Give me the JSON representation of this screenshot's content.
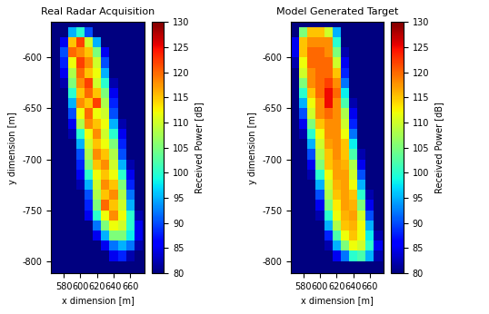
{
  "chart_data": [
    {
      "type": "heatmap",
      "title": "Real Radar Acquisition",
      "x_label": "x dimension [m]",
      "y_label": "y dimension [m]",
      "xlim": [
        565,
        677
      ],
      "ylim": [
        -812,
        -565
      ],
      "xticks": [
        580,
        600,
        620,
        640,
        660
      ],
      "yticks": [
        -800,
        -750,
        -700,
        -650,
        -600
      ],
      "x_edges": [
        565,
        575,
        585,
        595,
        605,
        615,
        625,
        635,
        645,
        655,
        665,
        675
      ],
      "y_edges": [
        -810,
        -800,
        -790,
        -780,
        -770,
        -760,
        -750,
        -740,
        -730,
        -720,
        -710,
        -700,
        -690,
        -680,
        -670,
        -660,
        -650,
        -640,
        -630,
        -620,
        -610,
        -600,
        -590,
        -580,
        -570,
        -560
      ],
      "cells": [
        [
          80,
          80,
          80,
          80,
          80,
          80,
          80,
          80,
          80,
          80,
          80
        ],
        [
          80,
          80,
          80,
          80,
          80,
          80,
          80,
          85,
          88,
          82,
          80
        ],
        [
          80,
          80,
          80,
          80,
          80,
          80,
          85,
          92,
          95,
          92,
          82
        ],
        [
          80,
          80,
          80,
          80,
          80,
          85,
          95,
          105,
          105,
          98,
          85
        ],
        [
          80,
          80,
          80,
          80,
          80,
          92,
          105,
          112,
          110,
          100,
          85
        ],
        [
          80,
          80,
          80,
          80,
          85,
          100,
          112,
          118,
          112,
          100,
          82
        ],
        [
          80,
          80,
          80,
          80,
          88,
          105,
          120,
          115,
          110,
          95,
          80
        ],
        [
          80,
          80,
          80,
          80,
          90,
          108,
          115,
          118,
          108,
          92,
          80
        ],
        [
          80,
          80,
          80,
          82,
          95,
          110,
          118,
          115,
          105,
          88,
          80
        ],
        [
          80,
          80,
          80,
          85,
          100,
          112,
          115,
          112,
          100,
          85,
          80
        ],
        [
          80,
          80,
          80,
          88,
          105,
          115,
          118,
          110,
          95,
          82,
          80
        ],
        [
          80,
          80,
          80,
          90,
          108,
          118,
          115,
          108,
          90,
          80,
          80
        ],
        [
          80,
          80,
          80,
          95,
          110,
          115,
          112,
          105,
          88,
          80,
          80
        ],
        [
          80,
          80,
          82,
          100,
          112,
          118,
          110,
          100,
          85,
          80,
          80
        ],
        [
          80,
          80,
          85,
          108,
          118,
          115,
          112,
          95,
          82,
          80,
          80
        ],
        [
          80,
          80,
          90,
          112,
          120,
          112,
          110,
          90,
          80,
          80,
          80
        ],
        [
          80,
          80,
          95,
          118,
          115,
          122,
          108,
          88,
          80,
          80,
          80
        ],
        [
          80,
          80,
          100,
          115,
          120,
          115,
          105,
          85,
          80,
          80,
          80
        ],
        [
          80,
          82,
          105,
          118,
          122,
          110,
          100,
          82,
          80,
          80,
          80
        ],
        [
          80,
          85,
          108,
          120,
          115,
          112,
          95,
          80,
          80,
          80,
          80
        ],
        [
          80,
          88,
          112,
          122,
          118,
          110,
          90,
          80,
          80,
          80,
          80
        ],
        [
          80,
          90,
          120,
          118,
          115,
          105,
          85,
          80,
          80,
          80,
          80
        ],
        [
          80,
          85,
          115,
          122,
          110,
          95,
          80,
          80,
          80,
          80,
          80
        ],
        [
          80,
          80,
          95,
          100,
          90,
          80,
          80,
          80,
          80,
          80,
          80
        ],
        [
          80,
          80,
          80,
          80,
          80,
          80,
          80,
          80,
          80,
          80,
          80
        ]
      ],
      "color_range": [
        80,
        130
      ],
      "color_ticks": [
        80,
        85,
        90,
        95,
        100,
        105,
        110,
        115,
        120,
        125,
        130
      ],
      "colorbar_label": "Received Power [dB]"
    },
    {
      "type": "heatmap",
      "title": "Model Generated Target",
      "x_label": "x dimension [m]",
      "y_label": "y dimension [m]",
      "xlim": [
        565,
        677
      ],
      "ylim": [
        -812,
        -565
      ],
      "xticks": [
        580,
        600,
        620,
        640,
        660
      ],
      "yticks": [
        -800,
        -750,
        -700,
        -650,
        -600
      ],
      "x_edges": [
        565,
        575,
        585,
        595,
        605,
        615,
        625,
        635,
        645,
        655,
        665,
        675
      ],
      "y_edges": [
        -810,
        -800,
        -790,
        -780,
        -770,
        -760,
        -750,
        -740,
        -730,
        -720,
        -710,
        -700,
        -690,
        -680,
        -670,
        -660,
        -650,
        -640,
        -630,
        -620,
        -610,
        -600,
        -590,
        -580,
        -570,
        -560
      ],
      "cells": [
        [
          80,
          80,
          80,
          80,
          80,
          80,
          80,
          80,
          80,
          80,
          80
        ],
        [
          80,
          80,
          80,
          80,
          80,
          85,
          92,
          100,
          102,
          95,
          82
        ],
        [
          80,
          80,
          80,
          80,
          82,
          95,
          105,
          112,
          110,
          100,
          85
        ],
        [
          80,
          80,
          80,
          80,
          88,
          102,
          112,
          115,
          112,
          98,
          82
        ],
        [
          80,
          80,
          80,
          80,
          95,
          108,
          115,
          116,
          112,
          95,
          80
        ],
        [
          80,
          80,
          80,
          82,
          100,
          112,
          116,
          117,
          110,
          90,
          80
        ],
        [
          80,
          80,
          80,
          85,
          105,
          113,
          117,
          116,
          105,
          85,
          80
        ],
        [
          80,
          80,
          80,
          90,
          108,
          115,
          117,
          115,
          100,
          82,
          80
        ],
        [
          80,
          80,
          80,
          95,
          110,
          116,
          117,
          112,
          95,
          80,
          80
        ],
        [
          80,
          80,
          82,
          100,
          112,
          117,
          117,
          110,
          90,
          80,
          80
        ],
        [
          80,
          80,
          85,
          105,
          115,
          117,
          116,
          108,
          85,
          80,
          80
        ],
        [
          80,
          80,
          90,
          108,
          115,
          118,
          115,
          102,
          82,
          80,
          80
        ],
        [
          80,
          80,
          95,
          110,
          117,
          118,
          115,
          98,
          80,
          80,
          80
        ],
        [
          80,
          82,
          100,
          112,
          118,
          118,
          112,
          92,
          80,
          80,
          80
        ],
        [
          80,
          85,
          105,
          115,
          118,
          118,
          110,
          88,
          80,
          80,
          80
        ],
        [
          80,
          90,
          110,
          118,
          120,
          118,
          108,
          85,
          80,
          80,
          80
        ],
        [
          80,
          95,
          112,
          118,
          125,
          118,
          102,
          82,
          80,
          80,
          80
        ],
        [
          80,
          100,
          115,
          120,
          125,
          120,
          98,
          80,
          80,
          80,
          80
        ],
        [
          80,
          105,
          118,
          120,
          122,
          118,
          92,
          80,
          80,
          80,
          80
        ],
        [
          80,
          110,
          118,
          120,
          120,
          115,
          88,
          80,
          80,
          80,
          80
        ],
        [
          82,
          112,
          120,
          120,
          120,
          110,
          85,
          80,
          80,
          80,
          80
        ],
        [
          85,
          115,
          120,
          120,
          118,
          105,
          82,
          80,
          80,
          80,
          80
        ],
        [
          85,
          115,
          118,
          118,
          118,
          100,
          80,
          80,
          80,
          80,
          80
        ],
        [
          80,
          105,
          115,
          115,
          110,
          95,
          80,
          80,
          80,
          80,
          80
        ],
        [
          80,
          80,
          80,
          80,
          80,
          80,
          80,
          80,
          80,
          80,
          80
        ]
      ],
      "color_range": [
        80,
        130
      ],
      "color_ticks": [
        80,
        85,
        90,
        95,
        100,
        105,
        110,
        115,
        120,
        125,
        130
      ],
      "colorbar_label": "Received Power [dB]"
    }
  ]
}
